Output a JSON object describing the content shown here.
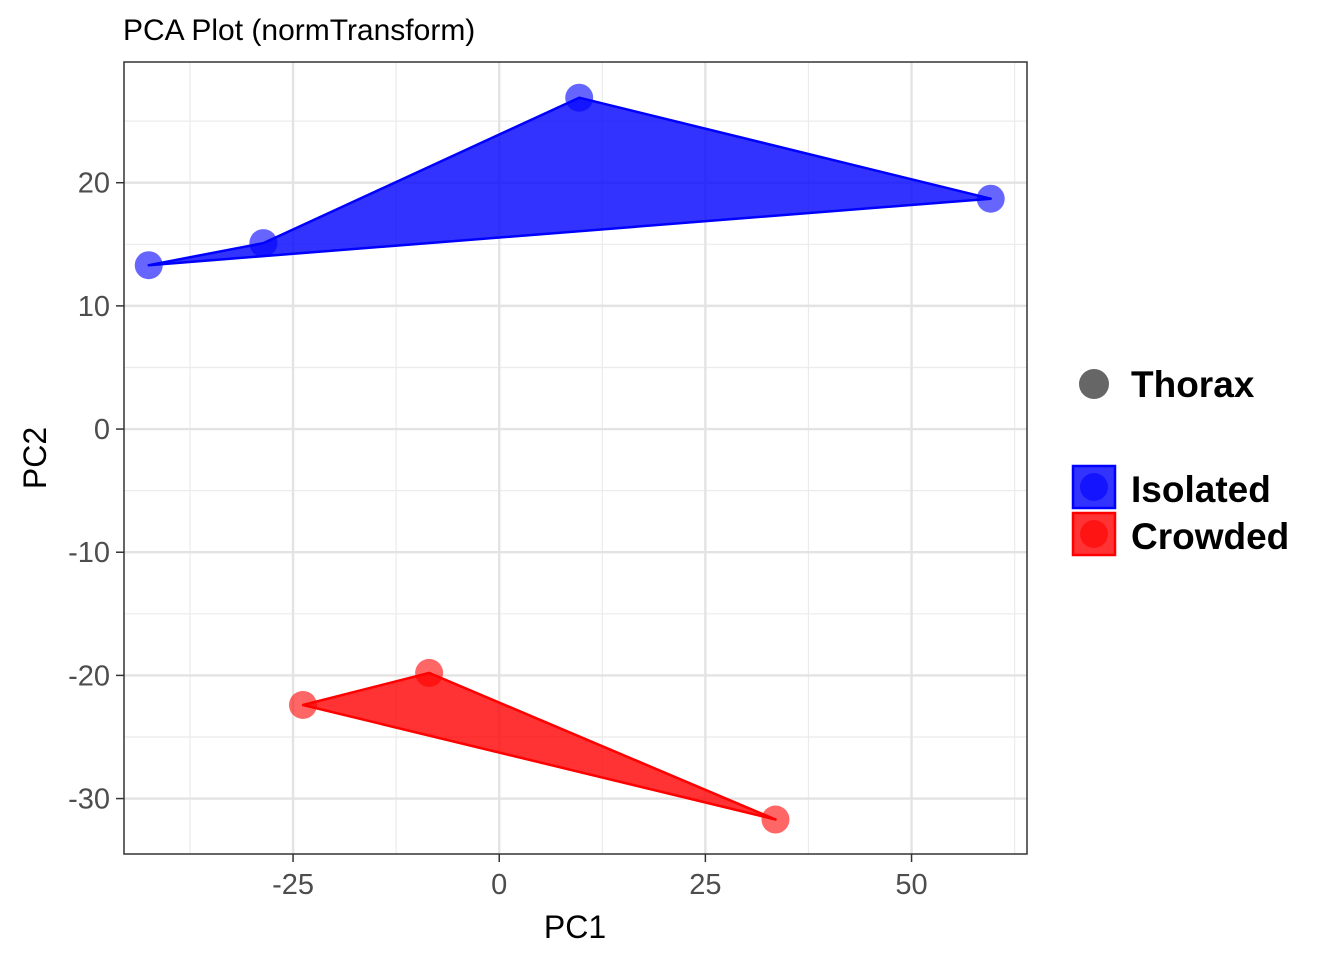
{
  "chart_data": {
    "type": "scatter",
    "title": "PCA Plot (normTransform)",
    "xlabel": "PC1",
    "ylabel": "PC2",
    "xlim": [
      -45.5,
      64
    ],
    "ylim": [
      -34.5,
      29.8
    ],
    "x_ticks": [
      -25,
      0,
      25,
      50
    ],
    "y_ticks": [
      -30,
      -20,
      -10,
      0,
      10,
      20
    ],
    "x_tick_labels": [
      "-25",
      "0",
      "25",
      "50"
    ],
    "y_tick_labels": [
      "-30",
      "-20",
      "-10",
      "0",
      "10",
      "20"
    ],
    "grid": true,
    "legend_position": "right",
    "shape_legend": [
      {
        "label": "Thorax",
        "shape": "circle",
        "color": "#666666"
      }
    ],
    "series": [
      {
        "name": "Isolated",
        "color": "#0000ff",
        "hull": true,
        "points": [
          {
            "x": -42.5,
            "y": 13.3
          },
          {
            "x": -28.6,
            "y": 15.1
          },
          {
            "x": 9.7,
            "y": 26.9
          },
          {
            "x": 59.6,
            "y": 18.7
          }
        ]
      },
      {
        "name": "Crowded",
        "color": "#ff0000",
        "hull": true,
        "points": [
          {
            "x": -23.8,
            "y": -22.4
          },
          {
            "x": -8.5,
            "y": -19.8
          },
          {
            "x": 33.5,
            "y": -31.7
          }
        ]
      }
    ]
  }
}
